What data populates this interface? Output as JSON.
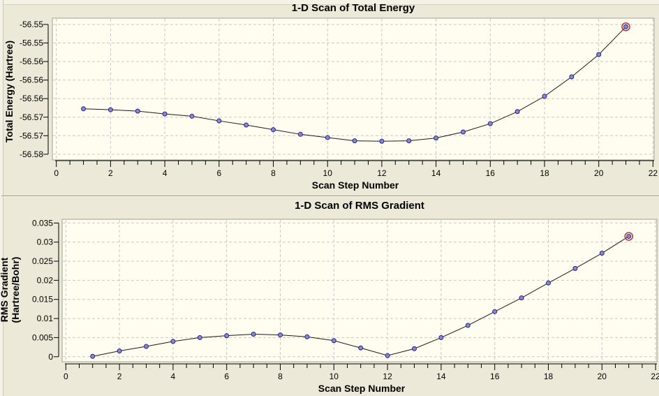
{
  "window": {
    "kind": "scan-plot-window"
  },
  "colors": {
    "background": "#ece9d8",
    "plot_background": "#fffdf0",
    "grid": "#c8c8c8",
    "frame": "#a39f90",
    "axis": "#000000",
    "line": "#1a1a1a",
    "marker_fill": "#8888d8",
    "marker_stroke": "#24247a",
    "highlight_ring": "#c03030",
    "text": "#000000"
  },
  "chart_data": [
    {
      "type": "line",
      "title": "1-D Scan of Total Energy",
      "xlabel": "Scan Step Number",
      "ylabel": "Total Energy (Hartree)",
      "ylabel_lines": [
        "Total Energy (Hartree)"
      ],
      "x": [
        1,
        2,
        3,
        4,
        5,
        6,
        7,
        8,
        9,
        10,
        11,
        12,
        13,
        14,
        15,
        16,
        17,
        18,
        19,
        20,
        21
      ],
      "values": [
        -56.5662,
        -56.5664,
        -56.5667,
        -56.5673,
        -56.5678,
        -56.5688,
        -56.5697,
        -56.5707,
        -56.5717,
        -56.5724,
        -56.5731,
        -56.5732,
        -56.5731,
        -56.5725,
        -56.5712,
        -56.5694,
        -56.5668,
        -56.5635,
        -56.5593,
        -56.5545,
        -56.5485
      ],
      "highlighted_point_step": 21,
      "xlim": [
        -0.15,
        22.2
      ],
      "ylim": [
        -56.5775,
        -56.5465
      ],
      "grid": true,
      "legend": "none",
      "x_major_ticks": [
        0,
        2,
        4,
        6,
        8,
        10,
        12,
        14,
        16,
        18,
        20,
        22
      ],
      "x_tick_labels": [
        "0",
        "2",
        "4",
        "6",
        "8",
        "10",
        "12",
        "14",
        "16",
        "18",
        "20",
        "22"
      ],
      "x_minor_step": 0.5,
      "y_ticks": [
        {
          "v": -56.548,
          "label": "-56.55"
        },
        {
          "v": -56.552,
          "label": "-56.55"
        },
        {
          "v": -56.556,
          "label": "-56.56"
        },
        {
          "v": -56.56,
          "label": "-56.56"
        },
        {
          "v": -56.564,
          "label": "-56.56"
        },
        {
          "v": -56.568,
          "label": "-56.57"
        },
        {
          "v": -56.572,
          "label": "-56.57"
        },
        {
          "v": -56.576,
          "label": "-56.58"
        }
      ]
    },
    {
      "type": "line",
      "title": "1-D Scan of RMS Gradient",
      "xlabel": "Scan Step Number",
      "ylabel": "RMS Gradient (Hartree/Bohr)",
      "ylabel_lines": [
        "RMS Gradient",
        "(Hartree/Bohr)"
      ],
      "x": [
        1,
        2,
        3,
        4,
        5,
        6,
        7,
        8,
        9,
        10,
        11,
        12,
        13,
        14,
        15,
        16,
        17,
        18,
        19,
        20,
        21
      ],
      "values": [
        0.0001,
        0.0015,
        0.0027,
        0.004,
        0.005,
        0.0055,
        0.0059,
        0.0057,
        0.0052,
        0.0042,
        0.0023,
        0.0003,
        0.0021,
        0.005,
        0.0082,
        0.0118,
        0.0154,
        0.0193,
        0.0231,
        0.0271,
        0.0315
      ],
      "highlighted_point_step": 21,
      "xlim": [
        -0.15,
        22.2
      ],
      "ylim": [
        -0.0013,
        0.036
      ],
      "grid": true,
      "legend": "none",
      "x_major_ticks": [
        0,
        2,
        4,
        6,
        8,
        10,
        12,
        14,
        16,
        18,
        20,
        22
      ],
      "x_tick_labels": [
        "0",
        "2",
        "4",
        "6",
        "8",
        "10",
        "12",
        "14",
        "16",
        "18",
        "20",
        "22"
      ],
      "x_minor_step": 0.5,
      "y_ticks": [
        {
          "v": 0.035,
          "label": "0.035"
        },
        {
          "v": 0.03,
          "label": "0.03"
        },
        {
          "v": 0.025,
          "label": "0.025"
        },
        {
          "v": 0.02,
          "label": "0.02"
        },
        {
          "v": 0.015,
          "label": "0.015"
        },
        {
          "v": 0.01,
          "label": "0.01"
        },
        {
          "v": 0.005,
          "label": "0.005"
        },
        {
          "v": 0.0,
          "label": "0"
        }
      ]
    }
  ]
}
